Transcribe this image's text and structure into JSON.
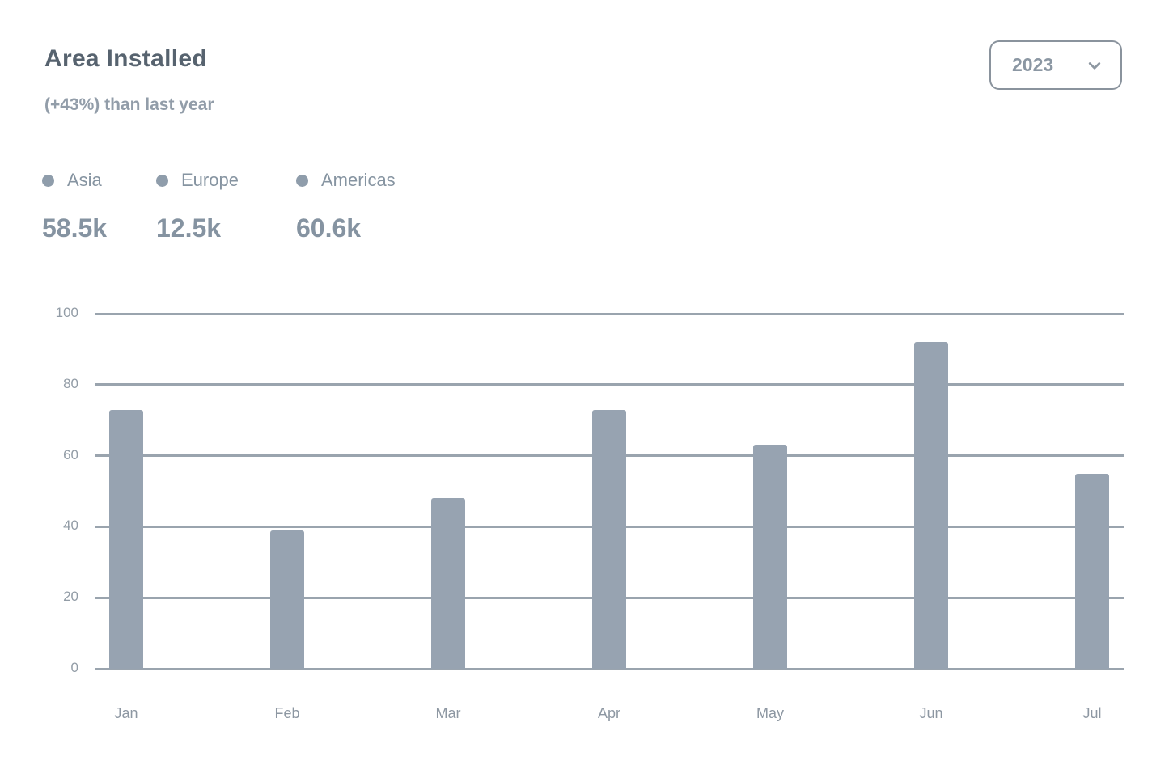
{
  "header": {
    "title": "Area Installed",
    "subtitle": "(+43%) than last year"
  },
  "controls": {
    "year_select": {
      "value": "2023",
      "icon": "chevron-down-icon"
    }
  },
  "legend": {
    "items": [
      {
        "label": "Asia",
        "value": "58.5k"
      },
      {
        "label": "Europe",
        "value": "12.5k"
      },
      {
        "label": "Americas",
        "value": "60.6k"
      }
    ]
  },
  "chart_data": {
    "type": "bar",
    "title": "Area Installed",
    "categories": [
      "Jan",
      "Feb",
      "Mar",
      "Apr",
      "May",
      "Jun",
      "Jul"
    ],
    "values": [
      73,
      39,
      48,
      73,
      63,
      92,
      55
    ],
    "xlabel": "",
    "ylabel": "",
    "ylim": [
      0,
      100
    ],
    "yticks": [
      0,
      20,
      40,
      60,
      80,
      100
    ],
    "grid": "horizontal",
    "legend_position": "top-left",
    "legend_entries": [
      "Asia",
      "Europe",
      "Americas"
    ]
  },
  "colors": {
    "bar": "#97a3b1",
    "gridline": "#9aa4ae",
    "title_text": "#57636f",
    "muted_text": "#8e9aa6",
    "legend_dot": "#8f9dab"
  }
}
